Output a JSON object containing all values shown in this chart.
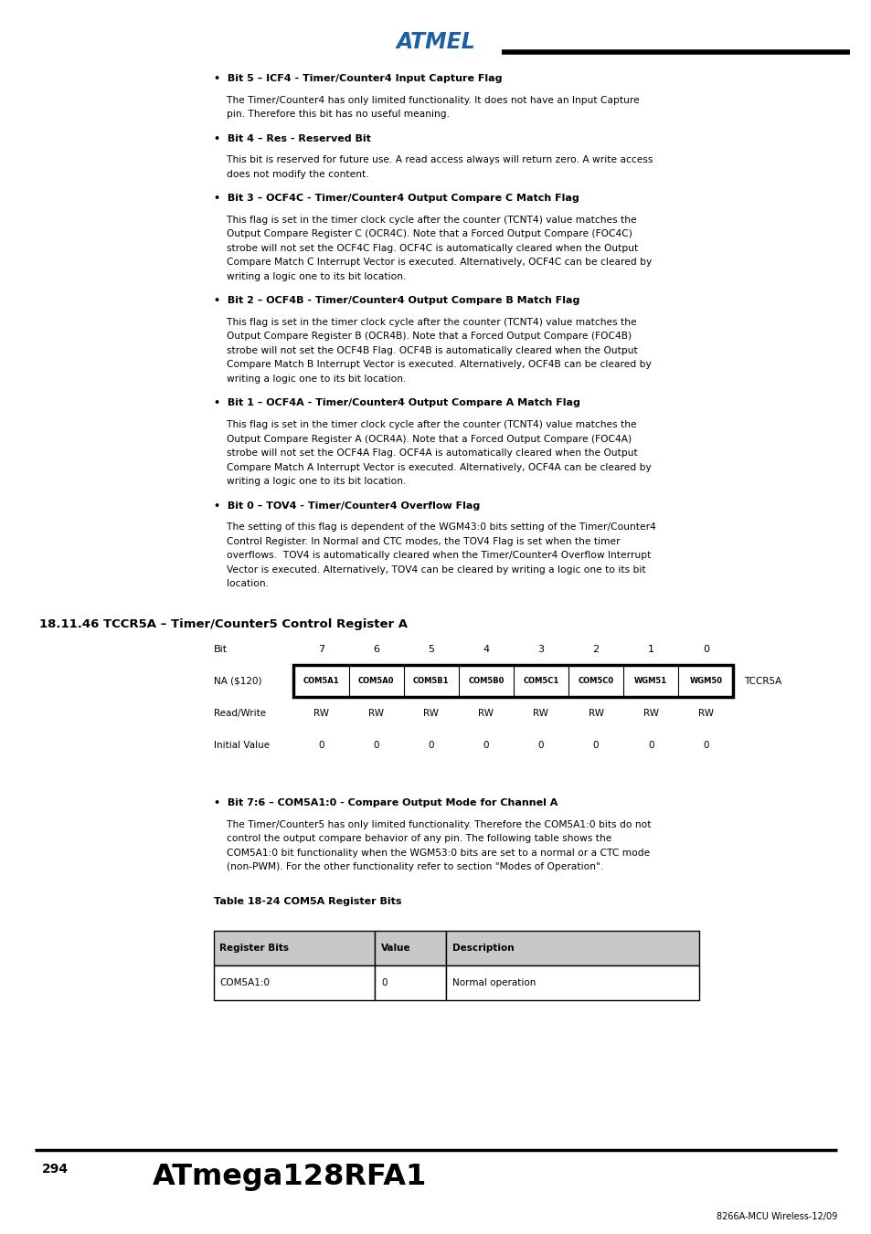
{
  "bg_color": "#ffffff",
  "page_width": 9.54,
  "page_height": 13.51,
  "bit_labels": [
    "7",
    "6",
    "5",
    "4",
    "3",
    "2",
    "1",
    "0"
  ],
  "reg_bits": [
    "COM5A1",
    "COM5A0",
    "COM5B1",
    "COM5B0",
    "COM5C1",
    "COM5C0",
    "WGM51",
    "WGM50"
  ],
  "reg_name_left": "NA ($120)",
  "reg_name_right": "TCCR5A",
  "rw_values": [
    "RW",
    "RW",
    "RW",
    "RW",
    "RW",
    "RW",
    "RW",
    "RW"
  ],
  "init_values": [
    "0",
    "0",
    "0",
    "0",
    "0",
    "0",
    "0",
    "0"
  ],
  "section_header": "18.11.46 TCCR5A – Timer/Counter5 Control Register A",
  "bullet_sections": [
    {
      "bullet": "Bit 5 – ICF4 - Timer/Counter4 Input Capture Flag",
      "body_lines": [
        "The Timer/Counter4 has only limited functionality. It does not have an Input Capture",
        "pin. Therefore this bit has no useful meaning."
      ]
    },
    {
      "bullet": "Bit 4 – Res - Reserved Bit",
      "body_lines": [
        "This bit is reserved for future use. A read access always will return zero. A write access",
        "does not modify the content."
      ]
    },
    {
      "bullet": "Bit 3 – OCF4C - Timer/Counter4 Output Compare C Match Flag",
      "body_lines": [
        "This flag is set in the timer clock cycle after the counter (TCNT4) value matches the",
        "Output Compare Register C (OCR4C). Note that a Forced Output Compare (FOC4C)",
        "strobe will not set the OCF4C Flag. OCF4C is automatically cleared when the Output",
        "Compare Match C Interrupt Vector is executed. Alternatively, OCF4C can be cleared by",
        "writing a logic one to its bit location."
      ]
    },
    {
      "bullet": "Bit 2 – OCF4B - Timer/Counter4 Output Compare B Match Flag",
      "body_lines": [
        "This flag is set in the timer clock cycle after the counter (TCNT4) value matches the",
        "Output Compare Register B (OCR4B). Note that a Forced Output Compare (FOC4B)",
        "strobe will not set the OCF4B Flag. OCF4B is automatically cleared when the Output",
        "Compare Match B Interrupt Vector is executed. Alternatively, OCF4B can be cleared by",
        "writing a logic one to its bit location."
      ]
    },
    {
      "bullet": "Bit 1 – OCF4A - Timer/Counter4 Output Compare A Match Flag",
      "body_lines": [
        "This flag is set in the timer clock cycle after the counter (TCNT4) value matches the",
        "Output Compare Register A (OCR4A). Note that a Forced Output Compare (FOC4A)",
        "strobe will not set the OCF4A Flag. OCF4A is automatically cleared when the Output",
        "Compare Match A Interrupt Vector is executed. Alternatively, OCF4A can be cleared by",
        "writing a logic one to its bit location."
      ]
    },
    {
      "bullet": "Bit 0 – TOV4 - Timer/Counter4 Overflow Flag",
      "body_lines": [
        "The setting of this flag is dependent of the WGM43:0 bits setting of the Timer/Counter4",
        "Control Register. In Normal and CTC modes, the TOV4 Flag is set when the timer",
        "overflows.  TOV4 is automatically cleared when the Timer/Counter4 Overflow Interrupt",
        "Vector is executed. Alternatively, TOV4 can be cleared by writing a logic one to its bit",
        "location."
      ]
    }
  ],
  "bit76_bullet": "Bit 7:6 – COM5A1:0 - Compare Output Mode for Channel A",
  "bit76_body_lines": [
    "The Timer/Counter5 has only limited functionality. Therefore the COM5A1:0 bits do not",
    "control the output compare behavior of any pin. The following table shows the",
    "COM5A1:0 bit functionality when the WGM53:0 bits are set to a normal or a CTC mode",
    "(non-PWM). For the other functionality refer to section \"Modes of Operation\"."
  ],
  "table18_24_title": "Table 18-24 COM5A Register Bits",
  "table18_24_headers": [
    "Register Bits",
    "Value",
    "Description"
  ],
  "table18_24_rows": [
    [
      "COM5A1:0",
      "0",
      "Normal operation"
    ]
  ],
  "footer_page": "294",
  "footer_chip": "ATmega128RFA1",
  "footer_ref": "8266A-MCU Wireless-12/09",
  "text_color": "#000000"
}
